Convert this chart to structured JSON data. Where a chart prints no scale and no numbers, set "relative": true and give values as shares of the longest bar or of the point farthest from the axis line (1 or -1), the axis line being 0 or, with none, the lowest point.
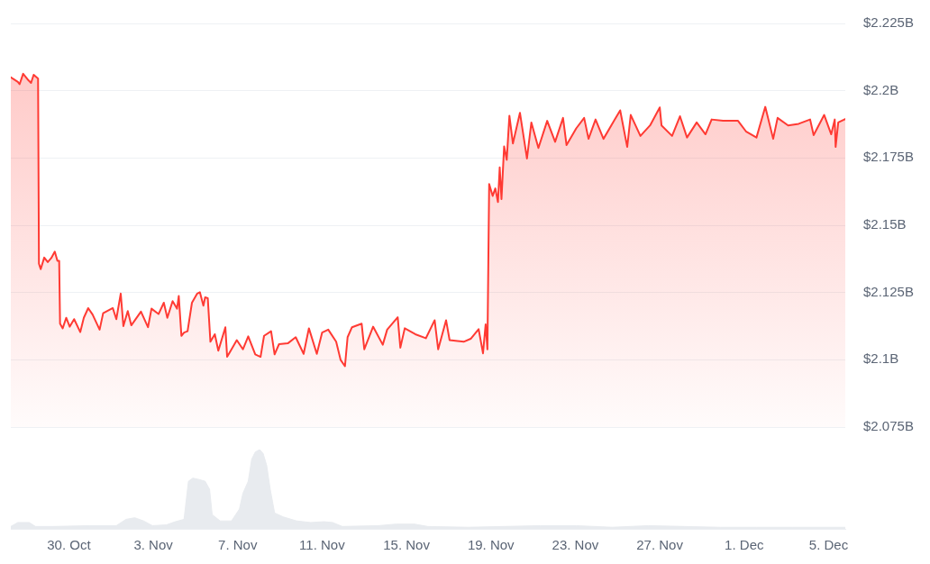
{
  "chart_data": [
    {
      "type": "area",
      "x": [
        "--10-27T06:00",
        "--10-27T14:00",
        "--10-27T16:00",
        "--10-27T20:00",
        "--10-28T02:00",
        "--10-28T05:00",
        "--10-28T08:00",
        "--10-28T13:00",
        "--10-28T14:00",
        "--10-28T16:00",
        "--10-28T20:00",
        "--10-29T00:00",
        "--10-29T04:00",
        "--10-29T08:00",
        "--10-29T11:00",
        "--10-29T13:00",
        "--10-29T14:00",
        "--10-29T17:00",
        "--10-29T21:00",
        "--10-30T01:00",
        "--10-30T06:00",
        "--10-30T13:00",
        "--10-30T17:00",
        "--10-30T22:00",
        "--10-31T03:00",
        "--10-31T11:00",
        "--10-31T15:00",
        "--11-01T02:00",
        "--11-01T06:00",
        "--11-01T11:00",
        "--11-01T14:00",
        "--11-01T19:00",
        "--11-01T23:00",
        "--11-02T10:00",
        "--11-02T18:00",
        "--11-02T22:00",
        "--11-03T06:00",
        "--11-03T12:00",
        "--11-03T16:00",
        "--11-03T22:00",
        "--11-04T03:00",
        "--11-04T05:00",
        "--11-04T08:00",
        "--11-04T11:00",
        "--11-04T15:00",
        "--11-04T20:00",
        "--11-05T02:00",
        "--11-05T05:00",
        "--11-05T09:00",
        "--11-05T11:00",
        "--11-05T14:00",
        "--11-05T17:00",
        "--11-05T22:00",
        "--11-06T02:00",
        "--11-06T10:00",
        "--11-06T12:00",
        "--11-06T23:00",
        "--11-07T06:00",
        "--11-07T12:00",
        "--11-07T20:00",
        "--11-08T02:00",
        "--11-08T06:00",
        "--11-08T14:00",
        "--11-08T18:00",
        "--11-08T23:00",
        "--11-09T09:00",
        "--11-09T18:00",
        "--11-10T03:00",
        "--11-10T09:00",
        "--11-10T18:00",
        "--11-11T00:00",
        "--11-11T07:00",
        "--11-11T16:00",
        "--11-11T21:00",
        "--11-12T02:00",
        "--11-12T05:00",
        "--11-12T10:00",
        "--11-12T21:00",
        "--11-13T00:00",
        "--11-13T10:00",
        "--11-13T21:00",
        "--11-14T02:00",
        "--11-14T14:00",
        "--11-14T17:00",
        "--11-14T22:00",
        "--11-15T10:00",
        "--11-15T22:00",
        "--11-16T08:00",
        "--11-16T12:00",
        "--11-16T21:00",
        "--11-17T01:00",
        "--11-17T17:00",
        "--11-18T01:00",
        "--11-18T10:00",
        "--11-18T15:00",
        "--11-18T18:00",
        "--11-18T20:00",
        "--11-18T22:00",
        "--11-19T02:00",
        "--11-19T05:00",
        "--11-19T08:00",
        "--11-19T10:00",
        "--11-19T12:00",
        "--11-19T15:00",
        "--11-19T18:00",
        "--11-19T21:00",
        "--11-20T01:00",
        "--11-20T09:00",
        "--11-20T17:00",
        "--11-20T22:00",
        "--11-21T06:00",
        "--11-21T16:00",
        "--11-22T01:00",
        "--11-22T10:00",
        "--11-22T14:00",
        "--11-23T01:00",
        "--11-23T10:00",
        "--11-23T15:00",
        "--11-23T23:00",
        "--11-24T08:00",
        "--11-24T20:00",
        "--11-25T03:00",
        "--11-25T11:00",
        "--11-25T15:00",
        "--11-26T02:00",
        "--11-26T13:00",
        "--11-27T00:00",
        "--11-27T02:00",
        "--11-27T14:00",
        "--11-27T23:00",
        "--11-28T07:00",
        "--11-28T18:00",
        "--11-29T04:00",
        "--11-29T11:00",
        "--11-30T00:00",
        "--11-30T17:00",
        "--12-01T02:00",
        "--12-01T14:00",
        "--12-02T00:00",
        "--12-02T09:00",
        "--12-02T14:00",
        "--12-03T02:00",
        "--12-03T14:00",
        "--12-04T03:00",
        "--12-04T07:00",
        "--12-04T19:00",
        "--12-05T03:00",
        "--12-05T07:00",
        "--12-05T08:00",
        "--12-05T11:00",
        "--12-05T19:00"
      ],
      "series": [
        {
          "color": "#ff3a33",
          "values": [
            2.205,
            2.2033,
            2.2024,
            2.2063,
            2.2039,
            2.2029,
            2.2059,
            2.2045,
            2.1357,
            2.1337,
            2.138,
            2.1363,
            2.1378,
            2.1402,
            2.1368,
            2.1368,
            2.1134,
            2.1117,
            2.1156,
            2.1123,
            2.1151,
            2.1103,
            2.1156,
            2.1192,
            2.1168,
            2.1112,
            2.1173,
            2.1192,
            2.1151,
            2.1246,
            2.1125,
            2.1181,
            2.1128,
            2.1179,
            2.1121,
            2.119,
            2.117,
            2.1212,
            2.1156,
            2.1218,
            2.119,
            2.1237,
            2.1089,
            2.1101,
            2.1106,
            2.1212,
            2.1246,
            2.1251,
            2.1201,
            2.1232,
            2.1229,
            2.1067,
            2.1095,
            2.1034,
            2.1121,
            2.1011,
            2.1073,
            2.1039,
            2.1087,
            2.102,
            2.1011,
            2.1089,
            2.1106,
            2.102,
            2.1058,
            2.1061,
            2.1084,
            2.1022,
            2.1117,
            2.1022,
            2.1101,
            2.1112,
            2.1067,
            2.1,
            2.0976,
            2.1084,
            2.1121,
            2.1134,
            2.1039,
            2.1123,
            2.1056,
            2.1112,
            2.1158,
            2.1045,
            2.1117,
            2.1095,
            2.108,
            2.1147,
            2.1039,
            2.1147,
            2.1073,
            2.1067,
            2.1078,
            2.1114,
            2.1024,
            2.1132,
            2.1039,
            2.1653,
            2.1609,
            2.1637,
            2.1586,
            2.1715,
            2.1597,
            2.1793,
            2.1743,
            2.1907,
            2.1804,
            2.1918,
            2.1748,
            2.1882,
            2.1787,
            2.1888,
            2.181,
            2.1899,
            2.1798,
            2.186,
            2.1899,
            2.1821,
            2.1893,
            2.1821,
            2.1888,
            2.1927,
            2.1791,
            2.191,
            2.1832,
            2.1871,
            2.1938,
            2.1871,
            2.1832,
            2.1905,
            2.1826,
            2.1882,
            2.1838,
            2.1893,
            2.1888,
            2.1888,
            2.1849,
            2.1826,
            2.194,
            2.1821,
            2.1899,
            2.1871,
            2.1877,
            2.1893,
            2.1835,
            2.191,
            2.1838,
            2.1893,
            2.1791,
            2.1882,
            2.1895
          ]
        }
      ],
      "xlim": [
        "--10-27T06:00",
        "--12-05T19:00"
      ],
      "ylim": [
        2.075,
        2.225
      ],
      "yticks": [
        {
          "value": 2.075,
          "label": "$2.075B"
        },
        {
          "value": 2.1,
          "label": "$2.1B"
        },
        {
          "value": 2.125,
          "label": "$2.125B"
        },
        {
          "value": 2.15,
          "label": "$2.15B"
        },
        {
          "value": 2.175,
          "label": "$2.175B"
        },
        {
          "value": 2.2,
          "label": "$2.2B"
        },
        {
          "value": 2.225,
          "label": "$2.225B"
        }
      ],
      "grid": "y",
      "tick_labels": "y"
    },
    {
      "type": "area",
      "x": [
        "--10-27T06:00",
        "--10-27T14:00",
        "--10-28T03:00",
        "--10-28T10:00",
        "--10-29T07:00",
        "--10-31T00:00",
        "--11-01T06:00",
        "--11-01T17:00",
        "--11-02T03:00",
        "--11-02T13:00",
        "--11-02T23:00",
        "--11-03T15:00",
        "--11-04T01:00",
        "--11-04T11:00",
        "--11-04T16:00",
        "--11-04T21:00",
        "--11-05T05:00",
        "--11-05T11:00",
        "--11-05T16:00",
        "--11-05T19:00",
        "--11-06T04:00",
        "--11-06T17:00",
        "--11-07T02:00",
        "--11-07T06:00",
        "--11-07T12:00",
        "--11-07T16:00",
        "--11-07T20:00",
        "--11-08T01:00",
        "--11-08T05:00",
        "--11-08T09:00",
        "--11-08T13:00",
        "--11-08T18:00",
        "--11-09T04:00",
        "--11-09T19:00",
        "--11-10T11:00",
        "--11-11T02:00",
        "--11-11T12:00",
        "--11-11T23:00",
        "--11-13T16:00",
        "--11-14T12:00",
        "--11-15T09:00",
        "--11-16T00:00",
        "--11-17T22:00",
        "--11-19T15:00",
        "--11-21T08:00",
        "--11-23T01:00",
        "--11-24T18:00",
        "--11-26T11:00",
        "--11-28T04:00",
        "--11-29T21:00",
        "--12-01T14:00",
        "--12-03T07:00",
        "--12-05T19:00"
      ],
      "series": [
        {
          "color": "#e8ebef",
          "values": [
            0.03,
            0.08,
            0.08,
            0.03,
            0.03,
            0.04,
            0.04,
            0.12,
            0.14,
            0.1,
            0.04,
            0.05,
            0.09,
            0.12,
            0.6,
            0.64,
            0.62,
            0.6,
            0.5,
            0.18,
            0.1,
            0.1,
            0.25,
            0.45,
            0.6,
            0.88,
            0.97,
            1,
            0.95,
            0.8,
            0.5,
            0.2,
            0.15,
            0.1,
            0.08,
            0.09,
            0.08,
            0.03,
            0.04,
            0.06,
            0.06,
            0.03,
            0.02,
            0.03,
            0.04,
            0.04,
            0.02,
            0.04,
            0.03,
            0.02,
            0.02,
            0.02,
            0.02
          ]
        }
      ],
      "relative": true,
      "xlim": [
        "--10-27T06:00",
        "--12-05T19:00"
      ],
      "xticks": [
        {
          "value": "--10-30",
          "label": "30. Oct"
        },
        {
          "value": "--11-03",
          "label": "3. Nov"
        },
        {
          "value": "--11-07",
          "label": "7. Nov"
        },
        {
          "value": "--11-11",
          "label": "11. Nov"
        },
        {
          "value": "--11-15",
          "label": "15. Nov"
        },
        {
          "value": "--11-19",
          "label": "19. Nov"
        },
        {
          "value": "--11-23",
          "label": "23. Nov"
        },
        {
          "value": "--11-27",
          "label": "27. Nov"
        },
        {
          "value": "--12-01",
          "label": "1. Dec"
        },
        {
          "value": "--12-05",
          "label": "5. Dec"
        }
      ],
      "tick_labels": "x"
    }
  ]
}
